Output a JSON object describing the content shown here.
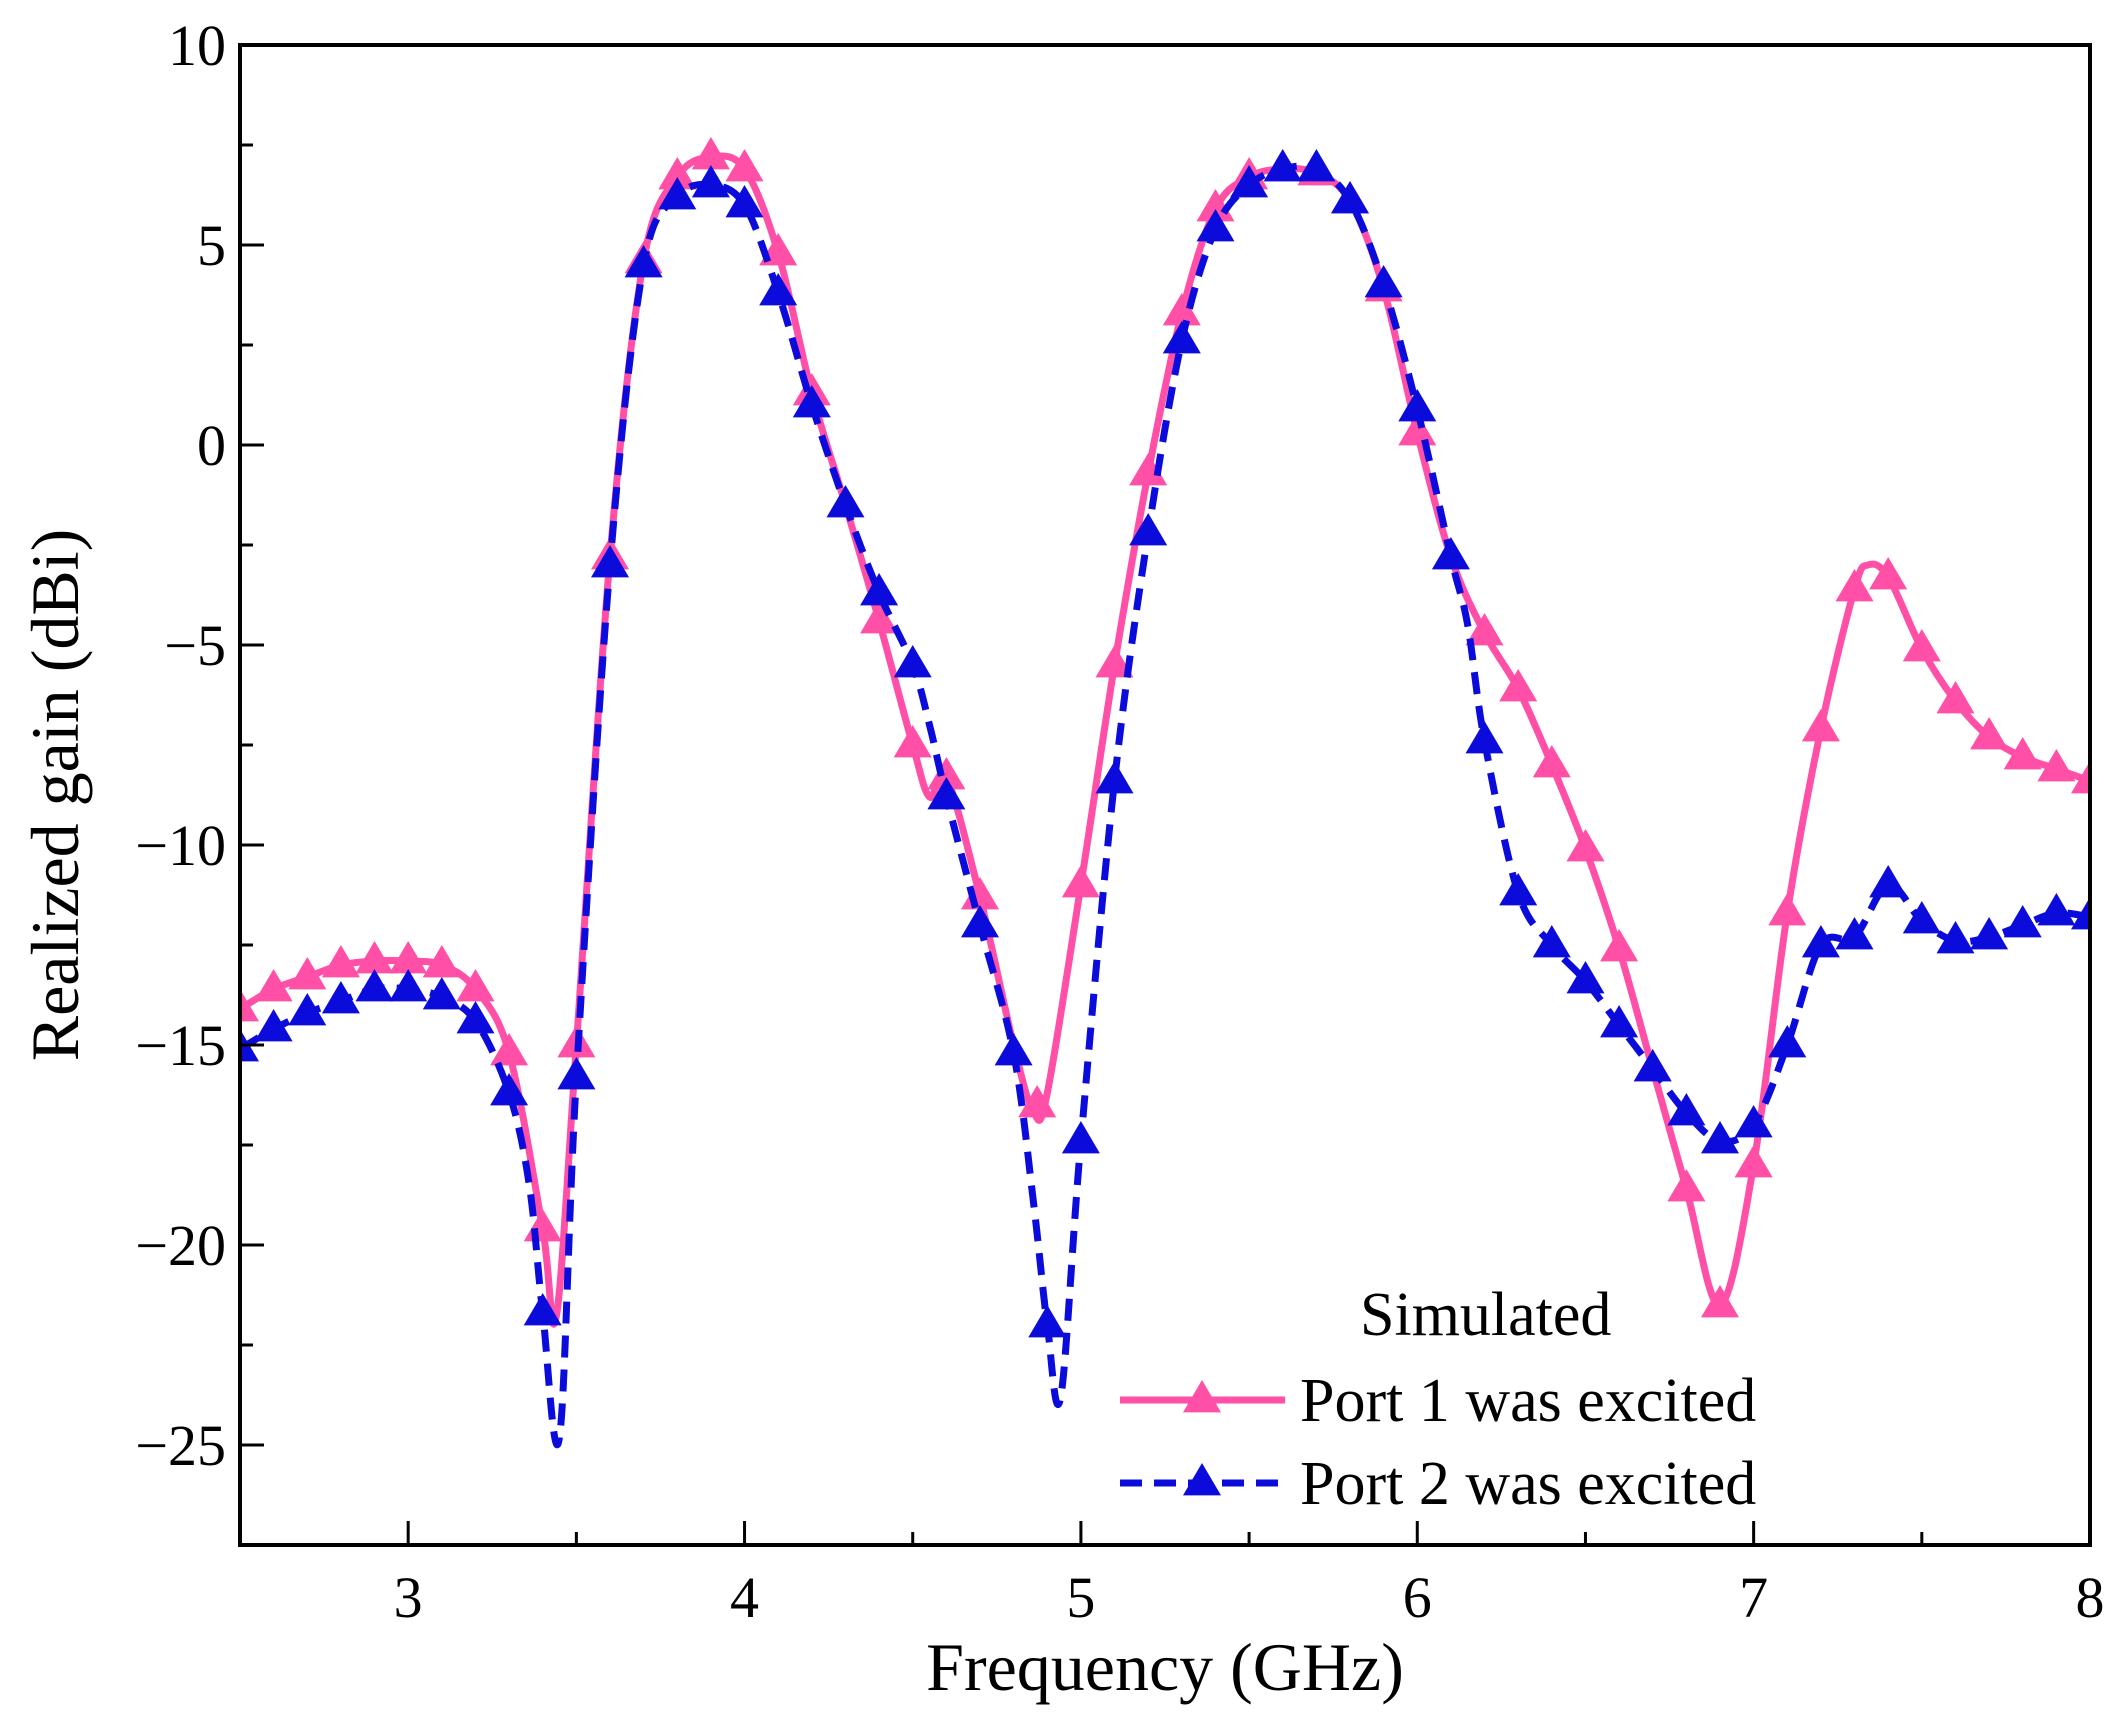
{
  "chart_data": {
    "type": "line",
    "title": "",
    "xlabel": "Frequency (GHz)",
    "ylabel": "Realized gain (dBi)",
    "xlim": [
      2.5,
      8
    ],
    "ylim": [
      -27.5,
      10
    ],
    "xticks": [
      3,
      4,
      5,
      6,
      7,
      8
    ],
    "xtick_labels": [
      "3",
      "4",
      "5",
      "6",
      "7",
      "8"
    ],
    "yticks": [
      10,
      5,
      0,
      -5,
      -10,
      -15,
      -20,
      -25
    ],
    "ytick_labels": [
      "10",
      "5",
      "0",
      "−5",
      "−10",
      "−15",
      "−20",
      "−25"
    ],
    "grid": false,
    "legend": {
      "title": "Simulated",
      "position": "bottom-right"
    },
    "series": [
      {
        "name": "Port 1 was excited",
        "color": "#ff4fa6",
        "style": "solid",
        "marker": "triangle",
        "curve": [
          [
            2.5,
            -14.1
          ],
          [
            2.6,
            -13.6
          ],
          [
            2.7,
            -13.3
          ],
          [
            2.8,
            -13.0
          ],
          [
            2.9,
            -12.9
          ],
          [
            3.0,
            -12.9
          ],
          [
            3.1,
            -13.0
          ],
          [
            3.2,
            -13.6
          ],
          [
            3.3,
            -15.2
          ],
          [
            3.4,
            -19.6
          ],
          [
            3.44,
            -21.8
          ],
          [
            3.5,
            -15.0
          ],
          [
            3.6,
            -2.8
          ],
          [
            3.7,
            4.6
          ],
          [
            3.8,
            6.7
          ],
          [
            3.9,
            7.2
          ],
          [
            4.0,
            6.9
          ],
          [
            4.1,
            4.8
          ],
          [
            4.2,
            1.3
          ],
          [
            4.3,
            -1.5
          ],
          [
            4.4,
            -4.4
          ],
          [
            4.5,
            -7.5
          ],
          [
            4.55,
            -8.8
          ],
          [
            4.6,
            -8.3
          ],
          [
            4.7,
            -11.3
          ],
          [
            4.8,
            -15.0
          ],
          [
            4.86,
            -16.7
          ],
          [
            4.9,
            -16.2
          ],
          [
            5.0,
            -11.0
          ],
          [
            5.1,
            -5.5
          ],
          [
            5.2,
            -0.7
          ],
          [
            5.3,
            3.3
          ],
          [
            5.4,
            5.9
          ],
          [
            5.5,
            6.7
          ],
          [
            5.6,
            6.9
          ],
          [
            5.7,
            6.8
          ],
          [
            5.8,
            6.1
          ],
          [
            5.9,
            3.9
          ],
          [
            6.0,
            0.3
          ],
          [
            6.1,
            -2.8
          ],
          [
            6.2,
            -4.7
          ],
          [
            6.3,
            -6.1
          ],
          [
            6.4,
            -8.0
          ],
          [
            6.5,
            -10.1
          ],
          [
            6.6,
            -12.6
          ],
          [
            6.7,
            -15.6
          ],
          [
            6.8,
            -18.6
          ],
          [
            6.9,
            -21.5
          ],
          [
            7.0,
            -18.0
          ],
          [
            7.1,
            -11.7
          ],
          [
            7.2,
            -7.1
          ],
          [
            7.3,
            -3.6
          ],
          [
            7.34,
            -3.0
          ],
          [
            7.4,
            -3.3
          ],
          [
            7.5,
            -5.1
          ],
          [
            7.6,
            -6.4
          ],
          [
            7.7,
            -7.3
          ],
          [
            7.8,
            -7.8
          ],
          [
            7.9,
            -8.1
          ],
          [
            8.0,
            -8.4
          ]
        ],
        "markers": [
          [
            2.5,
            -14.1
          ],
          [
            2.6,
            -13.6
          ],
          [
            2.7,
            -13.3
          ],
          [
            2.8,
            -13.0
          ],
          [
            2.9,
            -12.9
          ],
          [
            3.0,
            -12.9
          ],
          [
            3.1,
            -13.0
          ],
          [
            3.2,
            -13.6
          ],
          [
            3.3,
            -15.2
          ],
          [
            3.4,
            -19.6
          ],
          [
            3.5,
            -15.0
          ],
          [
            3.6,
            -2.8
          ],
          [
            3.7,
            4.6
          ],
          [
            3.8,
            6.7
          ],
          [
            3.9,
            7.2
          ],
          [
            4.0,
            6.9
          ],
          [
            4.1,
            4.8
          ],
          [
            4.2,
            1.3
          ],
          [
            4.4,
            -4.4
          ],
          [
            4.5,
            -7.5
          ],
          [
            4.6,
            -8.3
          ],
          [
            4.7,
            -11.3
          ],
          [
            4.87,
            -16.5
          ],
          [
            5.0,
            -11.0
          ],
          [
            5.1,
            -5.5
          ],
          [
            5.2,
            -0.7
          ],
          [
            5.3,
            3.3
          ],
          [
            5.4,
            5.9
          ],
          [
            5.5,
            6.7
          ],
          [
            5.6,
            6.9
          ],
          [
            5.7,
            6.8
          ],
          [
            5.8,
            6.1
          ],
          [
            5.9,
            3.9
          ],
          [
            6.0,
            0.3
          ],
          [
            6.2,
            -4.7
          ],
          [
            6.3,
            -6.1
          ],
          [
            6.4,
            -8.0
          ],
          [
            6.5,
            -10.1
          ],
          [
            6.6,
            -12.6
          ],
          [
            6.7,
            -15.6
          ],
          [
            6.8,
            -18.6
          ],
          [
            6.9,
            -21.5
          ],
          [
            7.0,
            -18.0
          ],
          [
            7.1,
            -11.7
          ],
          [
            7.2,
            -7.1
          ],
          [
            7.3,
            -3.6
          ],
          [
            7.4,
            -3.3
          ],
          [
            7.5,
            -5.1
          ],
          [
            7.6,
            -6.4
          ],
          [
            7.7,
            -7.3
          ],
          [
            7.8,
            -7.8
          ],
          [
            7.9,
            -8.1
          ],
          [
            8.0,
            -8.4
          ]
        ]
      },
      {
        "name": "Port 2 was excited",
        "color": "#0b0bdc",
        "style": "dashed",
        "marker": "triangle",
        "curve": [
          [
            2.5,
            -15.1
          ],
          [
            2.6,
            -14.6
          ],
          [
            2.7,
            -14.2
          ],
          [
            2.8,
            -13.9
          ],
          [
            2.9,
            -13.6
          ],
          [
            3.0,
            -13.6
          ],
          [
            3.1,
            -13.8
          ],
          [
            3.2,
            -14.4
          ],
          [
            3.3,
            -16.2
          ],
          [
            3.36,
            -18.5
          ],
          [
            3.4,
            -21.7
          ],
          [
            3.45,
            -24.8
          ],
          [
            3.5,
            -15.8
          ],
          [
            3.6,
            -3.0
          ],
          [
            3.7,
            4.5
          ],
          [
            3.8,
            6.2
          ],
          [
            3.9,
            6.5
          ],
          [
            4.0,
            6.0
          ],
          [
            4.1,
            3.8
          ],
          [
            4.2,
            1.0
          ],
          [
            4.3,
            -1.5
          ],
          [
            4.4,
            -3.7
          ],
          [
            4.5,
            -5.5
          ],
          [
            4.55,
            -7.0
          ],
          [
            4.6,
            -8.8
          ],
          [
            4.7,
            -12.0
          ],
          [
            4.8,
            -15.2
          ],
          [
            4.86,
            -19.0
          ],
          [
            4.9,
            -22.0
          ],
          [
            4.94,
            -23.8
          ],
          [
            5.0,
            -17.4
          ],
          [
            5.1,
            -8.4
          ],
          [
            5.2,
            -2.2
          ],
          [
            5.3,
            2.6
          ],
          [
            5.4,
            5.4
          ],
          [
            5.5,
            6.5
          ],
          [
            5.6,
            6.9
          ],
          [
            5.7,
            6.9
          ],
          [
            5.8,
            6.1
          ],
          [
            5.9,
            4.0
          ],
          [
            6.0,
            0.9
          ],
          [
            6.1,
            -2.8
          ],
          [
            6.15,
            -4.5
          ],
          [
            6.2,
            -7.4
          ],
          [
            6.3,
            -11.2
          ],
          [
            6.4,
            -12.5
          ],
          [
            6.5,
            -13.4
          ],
          [
            6.6,
            -14.5
          ],
          [
            6.7,
            -15.6
          ],
          [
            6.8,
            -16.7
          ],
          [
            6.9,
            -17.4
          ],
          [
            7.0,
            -17.0
          ],
          [
            7.1,
            -15.0
          ],
          [
            7.2,
            -12.5
          ],
          [
            7.3,
            -12.3
          ],
          [
            7.4,
            -11.0
          ],
          [
            7.5,
            -11.9
          ],
          [
            7.6,
            -12.4
          ],
          [
            7.7,
            -12.3
          ],
          [
            7.8,
            -12.0
          ],
          [
            7.9,
            -11.7
          ],
          [
            8.0,
            -11.8
          ]
        ],
        "markers": [
          [
            2.5,
            -15.1
          ],
          [
            2.6,
            -14.6
          ],
          [
            2.7,
            -14.2
          ],
          [
            2.8,
            -13.9
          ],
          [
            2.9,
            -13.6
          ],
          [
            3.0,
            -13.6
          ],
          [
            3.1,
            -13.8
          ],
          [
            3.2,
            -14.4
          ],
          [
            3.3,
            -16.2
          ],
          [
            3.4,
            -21.7
          ],
          [
            3.5,
            -15.8
          ],
          [
            3.6,
            -3.0
          ],
          [
            3.7,
            4.5
          ],
          [
            3.8,
            6.2
          ],
          [
            3.9,
            6.5
          ],
          [
            4.0,
            6.0
          ],
          [
            4.1,
            3.8
          ],
          [
            4.2,
            1.0
          ],
          [
            4.3,
            -1.5
          ],
          [
            4.4,
            -3.7
          ],
          [
            4.5,
            -5.5
          ],
          [
            4.6,
            -8.8
          ],
          [
            4.7,
            -12.0
          ],
          [
            4.8,
            -15.2
          ],
          [
            4.9,
            -22.0
          ],
          [
            5.0,
            -17.4
          ],
          [
            5.1,
            -8.4
          ],
          [
            5.2,
            -2.2
          ],
          [
            5.3,
            2.6
          ],
          [
            5.4,
            5.4
          ],
          [
            5.5,
            6.5
          ],
          [
            5.6,
            6.9
          ],
          [
            5.7,
            6.9
          ],
          [
            5.8,
            6.1
          ],
          [
            5.9,
            4.0
          ],
          [
            6.0,
            0.9
          ],
          [
            6.1,
            -2.8
          ],
          [
            6.2,
            -7.4
          ],
          [
            6.3,
            -11.2
          ],
          [
            6.4,
            -12.5
          ],
          [
            6.5,
            -13.4
          ],
          [
            6.6,
            -14.5
          ],
          [
            6.7,
            -15.6
          ],
          [
            6.8,
            -16.7
          ],
          [
            6.9,
            -17.4
          ],
          [
            7.0,
            -17.0
          ],
          [
            7.1,
            -15.0
          ],
          [
            7.2,
            -12.5
          ],
          [
            7.3,
            -12.3
          ],
          [
            7.4,
            -11.0
          ],
          [
            7.5,
            -11.9
          ],
          [
            7.6,
            -12.4
          ],
          [
            7.7,
            -12.3
          ],
          [
            7.8,
            -12.0
          ],
          [
            7.9,
            -11.7
          ],
          [
            8.0,
            -11.8
          ]
        ]
      }
    ]
  }
}
